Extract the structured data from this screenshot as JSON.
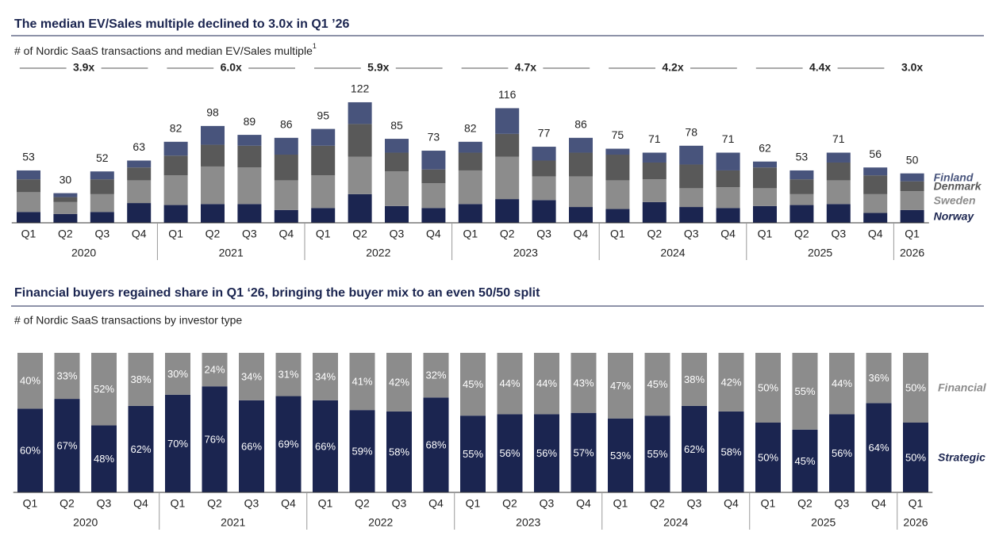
{
  "chart_data": [
    {
      "type": "stacked_bar",
      "title": "The median EV/Sales multiple declined to 3.0x in Q1 ’26",
      "subtitle": "# of Nordic SaaS transactions and median EV/Sales multiple",
      "subtitle_note": "1",
      "categories": [
        "Q1",
        "Q2",
        "Q3",
        "Q4",
        "Q1",
        "Q2",
        "Q3",
        "Q4",
        "Q1",
        "Q2",
        "Q3",
        "Q4",
        "Q1",
        "Q2",
        "Q3",
        "Q4",
        "Q1",
        "Q2",
        "Q3",
        "Q4",
        "Q1",
        "Q2",
        "Q3",
        "Q4",
        "Q1"
      ],
      "groups": [
        "2020",
        "2021",
        "2022",
        "2023",
        "2024",
        "2025",
        "2026"
      ],
      "multiples": [
        "3.9x",
        "6.0x",
        "5.9x",
        "4.7x",
        "4.2x",
        "4.4x",
        "3.0x"
      ],
      "totals": [
        53,
        30,
        52,
        63,
        82,
        98,
        89,
        86,
        95,
        122,
        85,
        73,
        82,
        116,
        77,
        86,
        75,
        71,
        78,
        71,
        62,
        53,
        71,
        56,
        50
      ],
      "ylim": [
        0,
        130
      ],
      "series": [
        {
          "name": "Norway",
          "color": "#1b2550",
          "values": [
            11,
            9,
            11,
            20,
            18,
            19,
            19,
            13,
            15,
            29,
            17,
            15,
            19,
            24,
            23,
            16,
            14,
            21,
            16,
            15,
            17,
            18,
            19,
            10,
            13
          ]
        },
        {
          "name": "Sweden",
          "color": "#8c8c8c",
          "values": [
            20,
            12,
            18,
            23,
            30,
            38,
            37,
            30,
            33,
            38,
            35,
            25,
            34,
            43,
            24,
            31,
            29,
            23,
            19,
            21,
            18,
            11,
            24,
            19,
            19
          ]
        },
        {
          "name": "Denmark",
          "color": "#595959",
          "values": [
            13,
            5,
            15,
            13,
            20,
            22,
            22,
            26,
            30,
            33,
            19,
            14,
            18,
            23,
            16,
            24,
            26,
            17,
            24,
            17,
            21,
            15,
            18,
            19,
            10
          ]
        },
        {
          "name": "Finland",
          "color": "#48547c",
          "values": [
            9,
            4,
            8,
            7,
            14,
            19,
            11,
            17,
            17,
            22,
            14,
            19,
            11,
            26,
            14,
            15,
            6,
            10,
            19,
            18,
            6,
            9,
            10,
            8,
            8
          ]
        }
      ]
    },
    {
      "type": "stacked_percent_bar",
      "title": "Financial buyers regained share in Q1 ‘26, bringing the buyer mix to an even 50/50 split",
      "subtitle": "# of Nordic SaaS transactions by investor type",
      "categories": [
        "Q1",
        "Q2",
        "Q3",
        "Q4",
        "Q1",
        "Q2",
        "Q3",
        "Q4",
        "Q1",
        "Q2",
        "Q3",
        "Q4",
        "Q1",
        "Q2",
        "Q3",
        "Q4",
        "Q1",
        "Q2",
        "Q3",
        "Q4",
        "Q1",
        "Q2",
        "Q3",
        "Q4",
        "Q1"
      ],
      "groups": [
        "2020",
        "2021",
        "2022",
        "2023",
        "2024",
        "2025",
        "2026"
      ],
      "ylim": [
        0,
        100
      ],
      "series": [
        {
          "name": "Strategic",
          "color": "#1b2550",
          "values": [
            60,
            67,
            48,
            62,
            70,
            76,
            66,
            69,
            66,
            59,
            58,
            68,
            55,
            56,
            56,
            57,
            53,
            55,
            62,
            58,
            50,
            45,
            56,
            64,
            50
          ],
          "value_labels": [
            "60%",
            "67%",
            "48%",
            "62%",
            "70%",
            "76%",
            "66%",
            "69%",
            "66%",
            "59%",
            "58%",
            "68%",
            "55%",
            "56%",
            "56%",
            "57%",
            "53%",
            "55%",
            "62%",
            "58%",
            "50%",
            "45%",
            "56%",
            "64%",
            "50%"
          ]
        },
        {
          "name": "Financial",
          "color": "#8c8c8c",
          "values": [
            40,
            33,
            52,
            38,
            30,
            24,
            34,
            31,
            34,
            41,
            42,
            32,
            45,
            44,
            44,
            43,
            47,
            45,
            38,
            42,
            50,
            55,
            44,
            36,
            50
          ],
          "value_labels": [
            "40%",
            "33%",
            "52%",
            "38%",
            "30%",
            "24%",
            "34%",
            "31%",
            "34%",
            "41%",
            "42%",
            "32%",
            "45%",
            "44%",
            "44%",
            "43%",
            "47%",
            "45%",
            "38%",
            "42%",
            "50%",
            "55%",
            "44%",
            "36%",
            "50%"
          ]
        }
      ]
    }
  ]
}
